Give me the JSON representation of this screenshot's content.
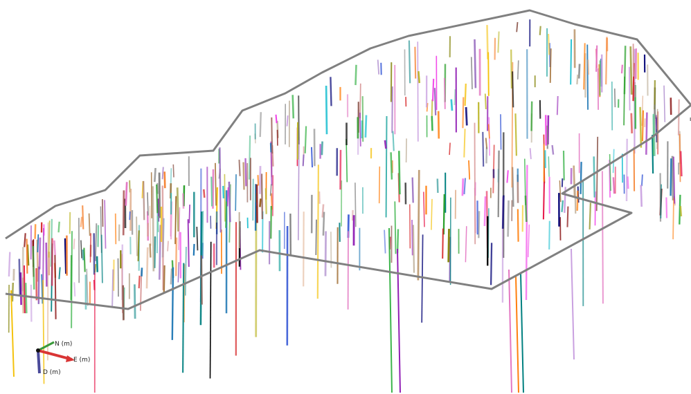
{
  "viewer": {
    "colors": {
      "background": "#ffffff",
      "boundary": "#808080",
      "axis_north": "#3a9a3a",
      "axis_east": "#d93535",
      "axis_down": "#4a4a9a"
    },
    "palette": [
      "#e6194b",
      "#3cb44b",
      "#4363d8",
      "#f58231",
      "#911eb4",
      "#46b5b0",
      "#f032e6",
      "#bcb628",
      "#d99a9a",
      "#008080",
      "#c9a0e0",
      "#9a6324",
      "#b8a890",
      "#800000",
      "#6fc9a0",
      "#808000",
      "#e0b090",
      "#000075",
      "#808080",
      "#000000",
      "#ff7f0e",
      "#2ca02c",
      "#1f77b4",
      "#d62728",
      "#9467bd",
      "#17becf",
      "#7f7f7f",
      "#e377c2",
      "#8c564b",
      "#f4c20d"
    ],
    "axes": {
      "north_label": "N (m)",
      "east_label": "E (m)",
      "down_label": "D (m)"
    }
  }
}
